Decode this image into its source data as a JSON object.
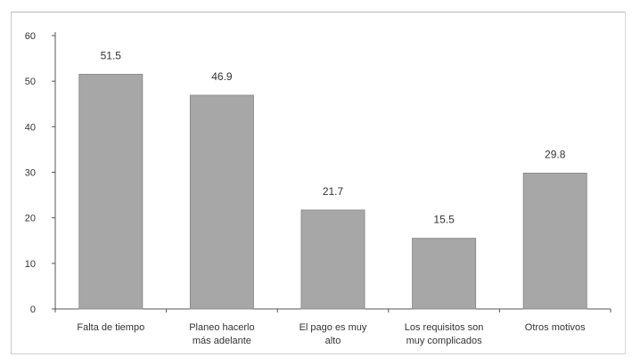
{
  "header": {
    "caption": ""
  },
  "chart_data": {
    "type": "bar",
    "title": "",
    "xlabel": "",
    "ylabel": "",
    "categories": [
      [
        "Falta de tiempo"
      ],
      [
        "Planeo hacerlo",
        "más adelante"
      ],
      [
        "El pago es muy",
        "alto"
      ],
      [
        "Los requisitos son",
        "muy complicados"
      ],
      [
        "Otros motivos"
      ]
    ],
    "values": [
      51.5,
      46.9,
      21.7,
      15.5,
      29.8
    ],
    "value_labels": [
      "51.5",
      "46.9",
      "21.7",
      "15.5",
      "29.8"
    ],
    "yticks": [
      0,
      10,
      20,
      30,
      40,
      50,
      60
    ],
    "ylim": [
      0,
      60
    ],
    "grid": false,
    "legend": "none",
    "colors": {
      "bar": "#a7a7a7",
      "bar_edge": "#8d8d8d",
      "axis": "#555555",
      "text": "#333333"
    }
  }
}
